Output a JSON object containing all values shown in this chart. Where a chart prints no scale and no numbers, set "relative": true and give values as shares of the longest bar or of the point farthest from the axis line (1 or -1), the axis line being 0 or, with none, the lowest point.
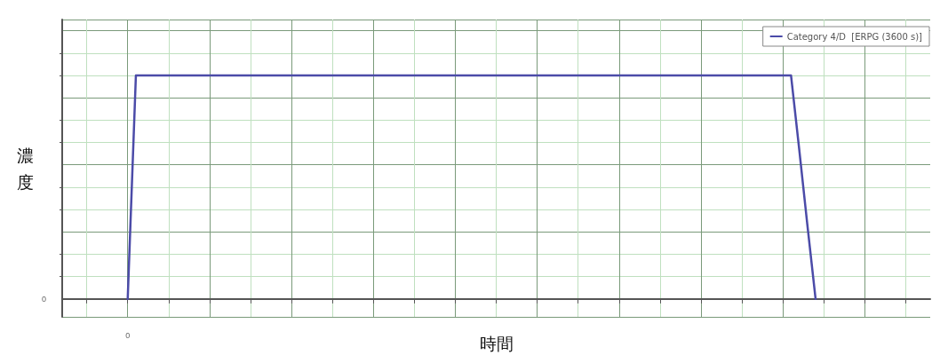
{
  "chart_data": {
    "type": "line",
    "xlabel": "時間",
    "ylabel": "濃度",
    "relative": true,
    "categories": [
      null,
      null,
      null,
      null,
      null,
      null,
      null,
      null,
      null,
      null,
      null,
      null,
      null,
      null,
      null,
      null,
      null,
      null,
      null,
      null,
      null,
      null,
      null,
      null,
      null,
      null,
      null,
      null,
      null,
      null,
      null,
      null,
      null,
      null,
      null,
      null,
      null,
      null,
      null,
      null,
      null,
      null,
      null,
      null,
      null,
      null,
      null,
      null,
      null,
      null,
      null,
      null,
      null,
      null,
      null,
      null,
      null,
      null,
      null,
      null,
      null,
      null,
      null,
      null,
      null,
      null,
      null,
      null,
      null,
      null,
      null,
      null,
      null,
      null,
      null,
      null,
      null,
      null,
      null,
      null,
      null,
      null,
      null,
      null,
      null,
      null,
      null,
      null,
      null,
      null,
      null,
      null,
      null,
      null,
      null,
      null,
      null,
      null,
      null,
      null,
      null,
      null,
      null,
      null,
      null,
      null,
      null
    ],
    "series": [
      {
        "name": "Category 4/D  [ERPG (3600 s)]",
        "color": "#4b4ba8",
        "values": [
          null,
          null,
          null,
          null,
          null,
          null,
          null,
          null,
          0,
          1,
          1,
          1,
          1,
          1,
          1,
          1,
          1,
          1,
          1,
          1,
          1,
          1,
          1,
          1,
          1,
          1,
          1,
          1,
          1,
          1,
          1,
          1,
          1,
          1,
          1,
          1,
          1,
          1,
          1,
          1,
          1,
          1,
          1,
          1,
          1,
          1,
          1,
          1,
          1,
          1,
          1,
          1,
          1,
          1,
          1,
          1,
          1,
          1,
          1,
          1,
          1,
          1,
          1,
          1,
          1,
          1,
          1,
          1,
          1,
          1,
          1,
          1,
          1,
          1,
          1,
          1,
          1,
          1,
          1,
          1,
          1,
          1,
          1,
          1,
          1,
          1,
          1,
          1,
          1,
          1,
          0.67,
          0.33,
          0,
          null,
          null,
          null,
          null,
          null,
          null,
          null,
          null,
          null,
          null,
          null,
          null,
          null,
          null
        ]
      }
    ],
    "annotations": [
      "0",
      "0"
    ],
    "grid": true,
    "legend": "top right",
    "marker": "none",
    "line_style": "solid"
  }
}
